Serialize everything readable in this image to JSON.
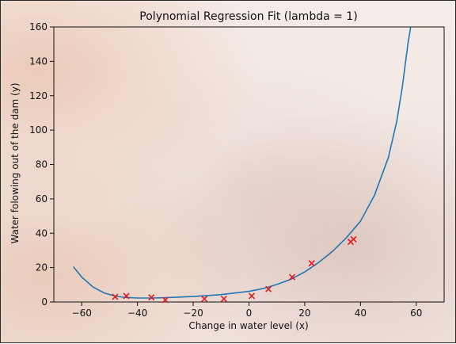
{
  "chart_data": {
    "type": "scatter",
    "title": "Polynomial Regression Fit (lambda = 1)",
    "xlabel": "Change in water level (x)",
    "ylabel": "Water folowing out of the dam (y)",
    "xlim": [
      -70,
      70
    ],
    "ylim": [
      0,
      160
    ],
    "xticks": [
      -60,
      -40,
      -20,
      0,
      20,
      40,
      60
    ],
    "yticks": [
      0,
      20,
      40,
      60,
      80,
      100,
      120,
      140,
      160
    ],
    "grid": false,
    "series": [
      {
        "kind": "scatter",
        "marker": "x",
        "color": "#e41a1c",
        "points": [
          {
            "x": -48,
            "y": 3
          },
          {
            "x": -44,
            "y": 3.5
          },
          {
            "x": -35,
            "y": 2.7
          },
          {
            "x": -30,
            "y": 1.2
          },
          {
            "x": -16,
            "y": 1.8
          },
          {
            "x": -9,
            "y": 1.8
          },
          {
            "x": 1,
            "y": 3.5
          },
          {
            "x": 7,
            "y": 7.5
          },
          {
            "x": 15.5,
            "y": 14.5
          },
          {
            "x": 22.5,
            "y": 22.5
          },
          {
            "x": 36.5,
            "y": 35
          },
          {
            "x": 37.5,
            "y": 36.5
          }
        ]
      },
      {
        "kind": "line",
        "color": "#1f77b4",
        "points": [
          {
            "x": -63,
            "y": 20.5
          },
          {
            "x": -60,
            "y": 14.5
          },
          {
            "x": -56,
            "y": 8.8
          },
          {
            "x": -52,
            "y": 5.3
          },
          {
            "x": -48,
            "y": 3.4
          },
          {
            "x": -44,
            "y": 2.6
          },
          {
            "x": -40,
            "y": 2.3
          },
          {
            "x": -35,
            "y": 2.3
          },
          {
            "x": -30,
            "y": 2.5
          },
          {
            "x": -20,
            "y": 3.2
          },
          {
            "x": -10,
            "y": 4.3
          },
          {
            "x": 0,
            "y": 6.2
          },
          {
            "x": 5,
            "y": 7.8
          },
          {
            "x": 10,
            "y": 10.2
          },
          {
            "x": 15,
            "y": 13.2
          },
          {
            "x": 20,
            "y": 17.5
          },
          {
            "x": 25,
            "y": 23.0
          },
          {
            "x": 30,
            "y": 29.5
          },
          {
            "x": 35,
            "y": 37.5
          },
          {
            "x": 40,
            "y": 47.0
          },
          {
            "x": 45,
            "y": 62.0
          },
          {
            "x": 50,
            "y": 84.0
          },
          {
            "x": 53,
            "y": 105.0
          },
          {
            "x": 55,
            "y": 125.0
          },
          {
            "x": 57,
            "y": 150.0
          },
          {
            "x": 58,
            "y": 160.0
          }
        ]
      }
    ]
  }
}
